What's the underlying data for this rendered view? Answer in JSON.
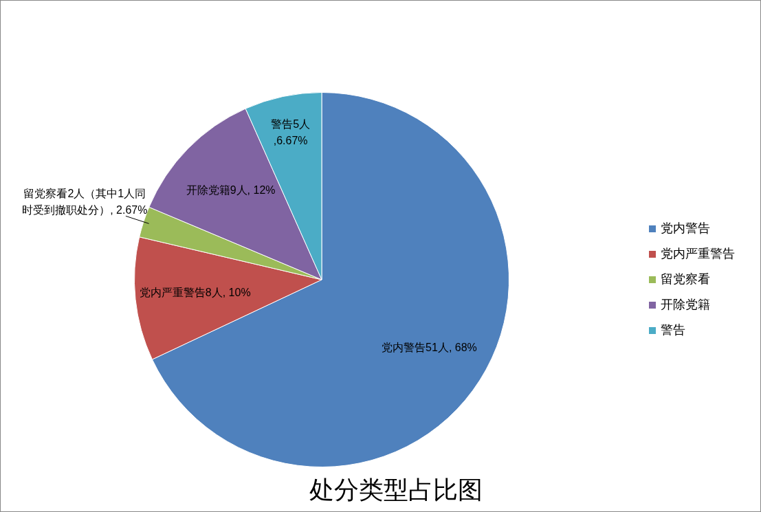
{
  "chart_data": {
    "type": "pie",
    "title": "处分类型占比图",
    "categories": [
      "党内警告",
      "党内严重警告",
      "留党察看",
      "开除党籍",
      "警告"
    ],
    "values": [
      51,
      8,
      2,
      9,
      5
    ],
    "colors": [
      "#4f81bd",
      "#c0504d",
      "#9bbb59",
      "#8064a2",
      "#4bacc6"
    ],
    "value_labels": [
      "党内警告51人, 68%",
      "党内严重警告8人, 10%",
      "留党察看2人（其中1人同时受到撤职处分）, 2.67%",
      "开除党籍9人, 12%",
      "警告5人,6.67%"
    ],
    "legend": "right"
  }
}
